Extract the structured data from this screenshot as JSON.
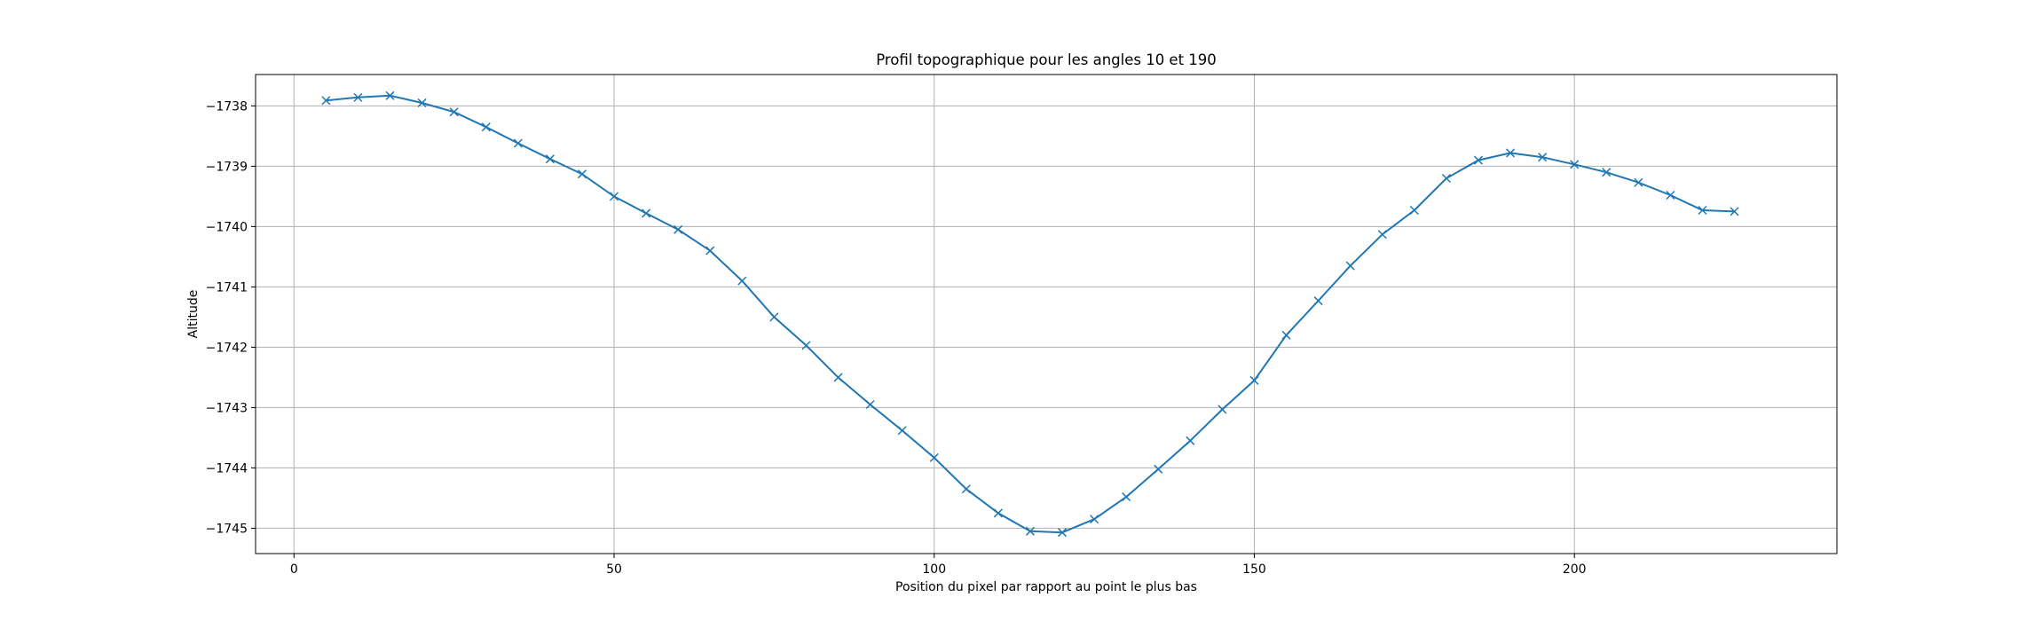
{
  "chart_data": {
    "type": "line",
    "title": "Profil topographique pour les angles 10 et 190",
    "xlabel": "Position du pixel par rapport au point le plus bas",
    "ylabel": "Altitude",
    "xlim": [
      -6,
      241
    ],
    "ylim": [
      -1745.42,
      -1737.48
    ],
    "xticks": [
      0,
      50,
      100,
      150,
      200
    ],
    "yticks": [
      -1738,
      -1739,
      -1740,
      -1741,
      -1742,
      -1743,
      -1744,
      -1745
    ],
    "grid": true,
    "color": "#1f77b4",
    "marker": "x",
    "series": [
      {
        "x": [
          5,
          10,
          15,
          20,
          25,
          30,
          35,
          40,
          45,
          50,
          55,
          60,
          65,
          70,
          75,
          80,
          85,
          90,
          95,
          100,
          105,
          110,
          115,
          120,
          125,
          130,
          135,
          140,
          145,
          150,
          155,
          160,
          165,
          170,
          175,
          180,
          185,
          190,
          195,
          200,
          205,
          210,
          215,
          220,
          225
        ],
        "y": [
          -1737.91,
          -1737.86,
          -1737.83,
          -1737.95,
          -1738.1,
          -1738.35,
          -1738.62,
          -1738.88,
          -1739.13,
          -1739.5,
          -1739.78,
          -1740.05,
          -1740.4,
          -1740.9,
          -1741.5,
          -1741.97,
          -1742.5,
          -1742.95,
          -1743.38,
          -1743.83,
          -1744.35,
          -1744.75,
          -1745.05,
          -1745.07,
          -1744.85,
          -1744.48,
          -1744.02,
          -1743.55,
          -1743.03,
          -1742.55,
          -1741.8,
          -1741.23,
          -1740.65,
          -1740.13,
          -1739.73,
          -1739.2,
          -1738.9,
          -1738.78,
          -1738.85,
          -1738.97,
          -1739.1,
          -1739.27,
          -1739.48,
          -1739.73,
          -1739.75
        ]
      }
    ]
  }
}
